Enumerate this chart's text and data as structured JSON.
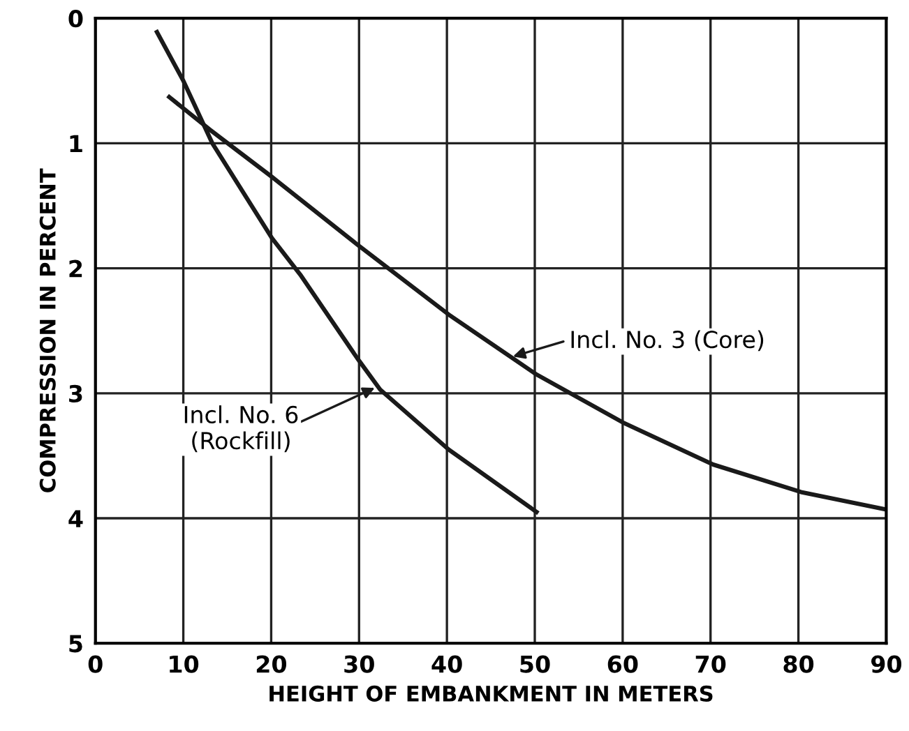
{
  "chart_data": {
    "type": "line",
    "xlabel": "HEIGHT OF EMBANKMENT IN METERS",
    "ylabel": "COMPRESSION IN PERCENT",
    "xlim": [
      0,
      90
    ],
    "ylim": [
      5,
      0
    ],
    "xticks": [
      0,
      10,
      20,
      30,
      40,
      50,
      60,
      70,
      80,
      90
    ],
    "yticks": [
      0,
      1,
      2,
      3,
      4,
      5
    ],
    "grid": true,
    "marker": "none",
    "line_style": "solid",
    "series": [
      {
        "color": "#1a1a1a",
        "x": [
          7.0,
          10,
          13.3,
          20.1,
          23.3,
          29.8,
          32.4,
          40.2,
          50.2
        ],
        "values": [
          0.11,
          0.5,
          1.0,
          1.76,
          2.05,
          2.72,
          2.97,
          3.45,
          3.95
        ]
      },
      {
        "color": "#1a1a1a",
        "x": [
          8.4,
          13,
          20.1,
          29.8,
          40.2,
          50.2,
          60.2,
          70.3,
          80.3,
          90
        ],
        "values": [
          0.63,
          0.89,
          1.27,
          1.81,
          2.37,
          2.85,
          3.24,
          3.57,
          3.79,
          3.93
        ]
      }
    ],
    "annotations": [
      {
        "text": "Incl. No. 3 (Core)",
        "x": 47.3,
        "y": 2.71
      },
      {
        "text": "Incl. No. 6\n(Rockfill)",
        "x": 32,
        "y": 2.95
      }
    ]
  }
}
